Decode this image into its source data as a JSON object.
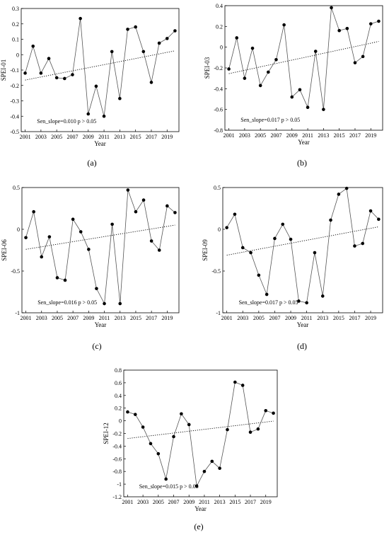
{
  "chart_data": [
    {
      "type": "line",
      "panel_label": "(a)",
      "xlabel": "Year",
      "ylabel": "SPEI-01",
      "x": [
        2001,
        2002,
        2003,
        2004,
        2005,
        2006,
        2007,
        2008,
        2009,
        2010,
        2011,
        2012,
        2013,
        2014,
        2015,
        2016,
        2017,
        2018,
        2019,
        2020
      ],
      "values": [
        -0.12,
        0.055,
        -0.12,
        -0.025,
        -0.15,
        -0.155,
        -0.13,
        0.235,
        -0.385,
        -0.205,
        -0.4,
        0.02,
        -0.285,
        0.165,
        0.18,
        0.02,
        -0.18,
        0.075,
        0.105,
        0.155
      ],
      "trend": [
        -0.165,
        0.025
      ],
      "annotation": "Sen_slope=0.010  p > 0.05",
      "xlim": [
        2000.5,
        2020.5
      ],
      "ylim": [
        -0.5,
        0.3
      ],
      "yticks": [
        -0.5,
        -0.4,
        -0.3,
        -0.2,
        -0.1,
        0,
        0.1,
        0.2,
        0.3
      ],
      "ytick_labels": [
        "-0.5",
        "-0.4",
        "-0.3",
        "-0.2",
        "-0.1",
        "0",
        "0.1",
        "0.2",
        "0.3"
      ],
      "xticks": [
        2001,
        2003,
        2005,
        2007,
        2009,
        2011,
        2013,
        2015,
        2017,
        2019
      ],
      "grid": false
    },
    {
      "type": "line",
      "panel_label": "(b)",
      "xlabel": "Year",
      "ylabel": "SPEI-03",
      "x": [
        2001,
        2002,
        2003,
        2004,
        2005,
        2006,
        2007,
        2008,
        2009,
        2010,
        2011,
        2012,
        2013,
        2014,
        2015,
        2016,
        2017,
        2018,
        2019,
        2020
      ],
      "values": [
        -0.21,
        0.09,
        -0.3,
        -0.01,
        -0.37,
        -0.24,
        -0.12,
        0.215,
        -0.48,
        -0.41,
        -0.58,
        -0.04,
        -0.6,
        0.38,
        0.16,
        0.18,
        -0.15,
        -0.09,
        0.225,
        0.25
      ],
      "trend": [
        -0.255,
        0.055
      ],
      "annotation": "Sen_slope=0.017  p > 0.05",
      "xlim": [
        2000.5,
        2020.5
      ],
      "ylim": [
        -0.8,
        0.4
      ],
      "yticks": [
        -0.8,
        -0.6,
        -0.4,
        -0.2,
        0,
        0.2,
        0.4
      ],
      "ytick_labels": [
        "-0.8",
        "-0.6",
        "-0.4",
        "-0.2",
        "0",
        "0.2",
        "0.4"
      ],
      "xticks": [
        2001,
        2003,
        2005,
        2007,
        2009,
        2011,
        2013,
        2015,
        2017,
        2019
      ],
      "grid": false
    },
    {
      "type": "line",
      "panel_label": "(c)",
      "xlabel": "Year",
      "ylabel": "SPEI-06",
      "x": [
        2001,
        2002,
        2003,
        2004,
        2005,
        2006,
        2007,
        2008,
        2009,
        2010,
        2011,
        2012,
        2013,
        2014,
        2015,
        2016,
        2017,
        2018,
        2019,
        2020
      ],
      "values": [
        -0.1,
        0.21,
        -0.33,
        -0.09,
        -0.58,
        -0.61,
        0.12,
        -0.03,
        -0.24,
        -0.71,
        -0.89,
        0.06,
        -0.89,
        0.47,
        0.21,
        0.35,
        -0.14,
        -0.25,
        0.28,
        0.2
      ],
      "trend": [
        -0.24,
        0.05
      ],
      "annotation": "Sen_slope=0.016  p > 0.05",
      "xlim": [
        2000.5,
        2020.5
      ],
      "ylim": [
        -1,
        0.5
      ],
      "yticks": [
        -1,
        -0.5,
        0,
        0.5
      ],
      "ytick_labels": [
        "-1",
        "-0.5",
        "0",
        "0.5"
      ],
      "xticks": [
        2001,
        2003,
        2005,
        2007,
        2009,
        2011,
        2013,
        2015,
        2017,
        2019
      ],
      "grid": false
    },
    {
      "type": "line",
      "panel_label": "(d)",
      "xlabel": "Year",
      "ylabel": "SPEI-09",
      "x": [
        2001,
        2002,
        2003,
        2004,
        2005,
        2006,
        2007,
        2008,
        2009,
        2010,
        2011,
        2012,
        2013,
        2014,
        2015,
        2016,
        2017,
        2018,
        2019,
        2020
      ],
      "values": [
        0.02,
        0.18,
        -0.22,
        -0.28,
        -0.55,
        -0.78,
        -0.11,
        0.06,
        -0.12,
        -0.86,
        -0.88,
        -0.28,
        -0.8,
        0.11,
        0.42,
        0.49,
        -0.2,
        -0.17,
        0.22,
        0.12
      ],
      "trend": [
        -0.31,
        0.03
      ],
      "annotation": "Sen_slope=0.017  p > 0.05",
      "xlim": [
        2000.5,
        2020.5
      ],
      "ylim": [
        -1,
        0.5
      ],
      "yticks": [
        -1,
        -0.5,
        0,
        0.5
      ],
      "ytick_labels": [
        "-1",
        "-0.5",
        "0",
        "0.5"
      ],
      "xticks": [
        2001,
        2003,
        2005,
        2007,
        2009,
        2011,
        2013,
        2015,
        2017,
        2019
      ],
      "grid": false
    },
    {
      "type": "line",
      "panel_label": "(e)",
      "xlabel": "Year",
      "ylabel": "SPEI-12",
      "x": [
        2001,
        2002,
        2003,
        2004,
        2005,
        2006,
        2007,
        2008,
        2009,
        2010,
        2011,
        2012,
        2013,
        2014,
        2015,
        2016,
        2017,
        2018,
        2019,
        2020
      ],
      "values": [
        0.14,
        0.1,
        -0.1,
        -0.36,
        -0.52,
        -0.92,
        -0.25,
        0.11,
        -0.06,
        -1.03,
        -0.8,
        -0.64,
        -0.75,
        -0.14,
        0.61,
        0.56,
        -0.18,
        -0.13,
        0.16,
        0.12
      ],
      "trend": [
        -0.28,
        -0.005
      ],
      "annotation": "Sen_slope=0.015  p > 0.05",
      "xlim": [
        2000.5,
        2020.5
      ],
      "ylim": [
        -1.2,
        0.8
      ],
      "yticks": [
        -1.2,
        -1,
        -0.8,
        -0.6,
        -0.4,
        -0.2,
        0,
        0.2,
        0.4,
        0.6,
        0.8
      ],
      "ytick_labels": [
        "-1.2",
        "-1",
        "-0.8",
        "-0.6",
        "-0.4",
        "-0.2",
        "0",
        "0.2",
        "0.4",
        "0.6",
        "0.8"
      ],
      "xticks": [
        2001,
        2003,
        2005,
        2007,
        2009,
        2011,
        2013,
        2015,
        2017,
        2019
      ],
      "grid": false
    }
  ]
}
